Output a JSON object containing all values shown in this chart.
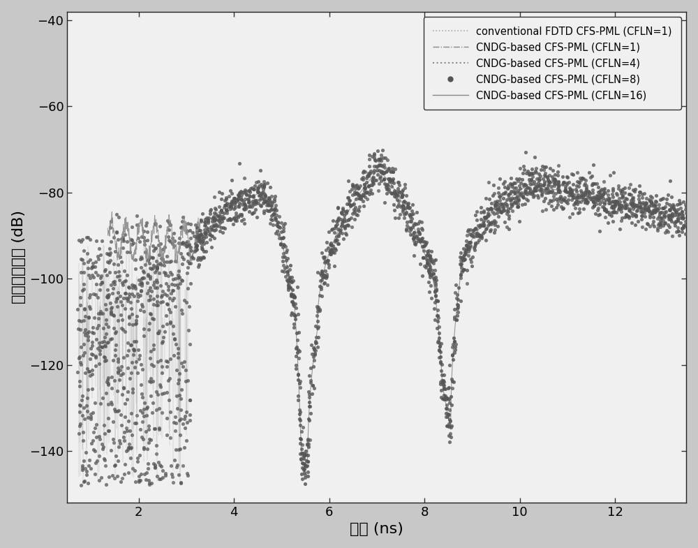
{
  "xlabel": "时间 (ns)",
  "ylabel": "相对反射误差 (dB)",
  "xlim": [
    0.5,
    13.5
  ],
  "ylim": [
    -152,
    -38
  ],
  "yticks": [
    -40,
    -60,
    -80,
    -100,
    -120,
    -140
  ],
  "xticks": [
    2,
    4,
    6,
    8,
    10,
    12
  ],
  "legend_entries": [
    "conventional FDTD CFS-PML (CFLN=1)",
    "CNDG-based CFS-PML (CFLN=1)",
    "CNDG-based CFS-PML (CFLN=4)",
    "CNDG-based CFS-PML (CFLN=8)",
    "CNDG-based CFS-PML (CFLN=16)"
  ],
  "bg_color": "#c8c8c8",
  "plot_bg_color": "#f0f0f0",
  "dot_color": "#555555",
  "line_color": "#777777"
}
